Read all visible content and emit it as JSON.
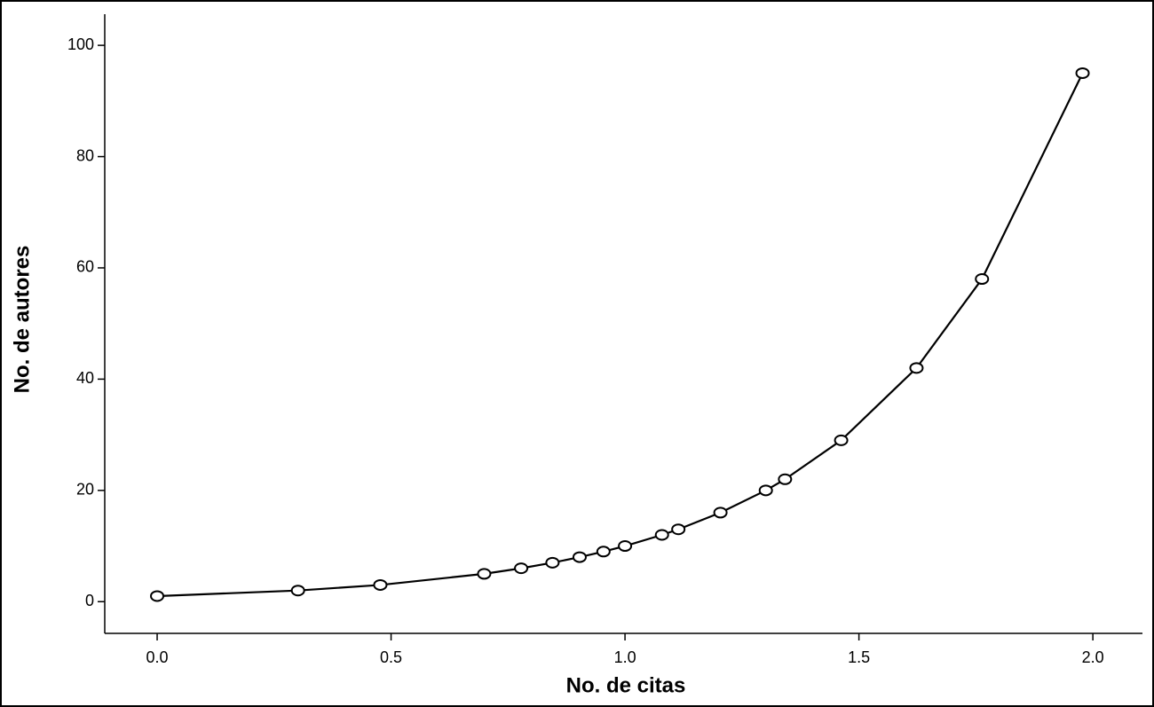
{
  "chart_data": {
    "type": "line",
    "x_label": "No. de citas",
    "y_label": "No. de autores",
    "x": [
      0,
      0.301,
      0.477,
      0.699,
      0.778,
      0.845,
      0.903,
      0.954,
      1.0,
      1.079,
      1.114,
      1.204,
      1.301,
      1.342,
      1.462,
      1.623,
      1.763,
      1.978
    ],
    "series": [
      {
        "color": "#000000",
        "values": [
          1,
          2,
          3,
          5,
          6,
          7,
          8,
          9,
          10,
          12,
          13,
          16,
          20,
          22,
          29,
          42,
          58,
          95
        ]
      }
    ],
    "xlim": [
      -0.112,
      2.106
    ],
    "ylim": [
      -5.7,
      105.6
    ],
    "xticks": [
      {
        "value": 0,
        "label": "0.0"
      },
      0.5,
      {
        "value": 1,
        "label": "1.0"
      },
      1.5,
      {
        "value": 2,
        "label": "2.0"
      }
    ],
    "yticks": [
      0,
      20,
      40,
      60,
      80,
      100
    ],
    "markers": true
  }
}
